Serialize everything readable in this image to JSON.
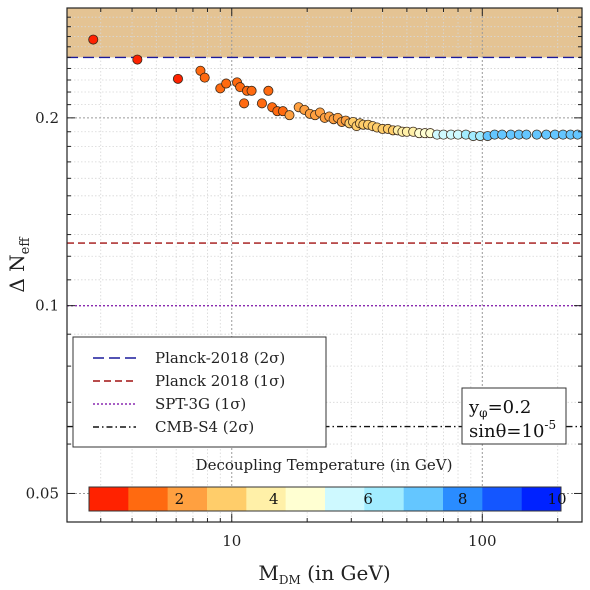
{
  "chart_data": {
    "type": "scatter",
    "xlabel": "M",
    "xlabel_sub": "DM",
    "xlabel_rest": " (in GeV)",
    "ylabel": "Δ N",
    "ylabel_sub": "eff",
    "xscale": "log",
    "yscale": "log",
    "xlim": [
      2.2,
      250
    ],
    "ylim": [
      0.045,
      0.3
    ],
    "x_ticks": [
      {
        "value": 10,
        "label": "10"
      },
      {
        "value": 100,
        "label": "100"
      }
    ],
    "y_ticks": [
      {
        "value": 0.05,
        "label": "0.05"
      },
      {
        "value": 0.1,
        "label": "0.1"
      },
      {
        "value": 0.2,
        "label": "0.2"
      }
    ],
    "grid": true,
    "excluded_band": {
      "from": 0.25,
      "to": 0.3,
      "color": "#e4c393"
    },
    "reference_lines": [
      {
        "name": "Planck-2018 (2σ)",
        "y": 0.25,
        "color": "#1a1a9c",
        "dash": "long"
      },
      {
        "name": "Planck 2018 (1σ)",
        "y": 0.126,
        "color": "#a01010",
        "dash": "medium"
      },
      {
        "name": "SPT-3G (1σ)",
        "y": 0.1,
        "color": "#8a2ab0",
        "dash": "dot"
      },
      {
        "name": "CMB-S4 (2σ)",
        "y": 0.064,
        "color": "#111111",
        "dash": "dashdot"
      }
    ],
    "legend_placement": "lower-left",
    "annotation": {
      "line1_prefix": "y",
      "line1_sub": "φ",
      "line1_value": "=0.2",
      "line2_prefix": "sinθ=10",
      "line2_sup": "-5"
    },
    "colorbar": {
      "title": "Decoupling Temperature (in GeV)",
      "range": [
        0,
        10
      ],
      "ticks": [
        "2",
        "4",
        "6",
        "8",
        "10"
      ],
      "bins": [
        "#ff2200",
        "#ff6a10",
        "#ffa040",
        "#ffcd6a",
        "#fff0a8",
        "#ffffd2",
        "#cef9ff",
        "#a2ecff",
        "#64c6ff",
        "#2a8cff",
        "#1456ff",
        "#0022ff"
      ]
    },
    "points": [
      {
        "x": 2.8,
        "y": 0.267,
        "t": 0.3
      },
      {
        "x": 4.2,
        "y": 0.248,
        "t": 0.6
      },
      {
        "x": 6.1,
        "y": 0.231,
        "t": 0.8
      },
      {
        "x": 7.5,
        "y": 0.238,
        "t": 1.0
      },
      {
        "x": 7.8,
        "y": 0.232,
        "t": 1.0
      },
      {
        "x": 9.0,
        "y": 0.223,
        "t": 1.1
      },
      {
        "x": 9.5,
        "y": 0.227,
        "t": 1.1
      },
      {
        "x": 10.5,
        "y": 0.228,
        "t": 1.2
      },
      {
        "x": 10.8,
        "y": 0.224,
        "t": 1.2
      },
      {
        "x": 11.5,
        "y": 0.221,
        "t": 1.3
      },
      {
        "x": 12.0,
        "y": 0.221,
        "t": 1.3
      },
      {
        "x": 11.2,
        "y": 0.211,
        "t": 1.3
      },
      {
        "x": 14.0,
        "y": 0.221,
        "t": 1.4
      },
      {
        "x": 13.2,
        "y": 0.211,
        "t": 1.4
      },
      {
        "x": 14.5,
        "y": 0.208,
        "t": 1.5
      },
      {
        "x": 15.2,
        "y": 0.205,
        "t": 1.5
      },
      {
        "x": 16.0,
        "y": 0.205,
        "t": 1.6
      },
      {
        "x": 17.0,
        "y": 0.202,
        "t": 1.7
      },
      {
        "x": 18.5,
        "y": 0.208,
        "t": 1.7
      },
      {
        "x": 19.5,
        "y": 0.206,
        "t": 1.8
      },
      {
        "x": 20.5,
        "y": 0.203,
        "t": 1.8
      },
      {
        "x": 21.5,
        "y": 0.202,
        "t": 1.9
      },
      {
        "x": 22.5,
        "y": 0.204,
        "t": 2.0
      },
      {
        "x": 23.5,
        "y": 0.2,
        "t": 2.0
      },
      {
        "x": 24.5,
        "y": 0.201,
        "t": 2.1
      },
      {
        "x": 25.5,
        "y": 0.199,
        "t": 2.2
      },
      {
        "x": 26.5,
        "y": 0.2,
        "t": 2.2
      },
      {
        "x": 27.5,
        "y": 0.197,
        "t": 2.3
      },
      {
        "x": 28.5,
        "y": 0.198,
        "t": 2.4
      },
      {
        "x": 29.5,
        "y": 0.196,
        "t": 2.5
      },
      {
        "x": 30.5,
        "y": 0.197,
        "t": 2.5
      },
      {
        "x": 31.5,
        "y": 0.194,
        "t": 2.6
      },
      {
        "x": 32.5,
        "y": 0.196,
        "t": 2.7
      },
      {
        "x": 33.5,
        "y": 0.195,
        "t": 2.7
      },
      {
        "x": 35.0,
        "y": 0.195,
        "t": 2.8
      },
      {
        "x": 36.5,
        "y": 0.194,
        "t": 2.9
      },
      {
        "x": 38.0,
        "y": 0.193,
        "t": 3.0
      },
      {
        "x": 40.0,
        "y": 0.192,
        "t": 3.1
      },
      {
        "x": 42.0,
        "y": 0.192,
        "t": 3.2
      },
      {
        "x": 44.0,
        "y": 0.191,
        "t": 3.3
      },
      {
        "x": 46.0,
        "y": 0.191,
        "t": 3.5
      },
      {
        "x": 48.0,
        "y": 0.19,
        "t": 3.6
      },
      {
        "x": 50.0,
        "y": 0.19,
        "t": 3.8
      },
      {
        "x": 53.0,
        "y": 0.19,
        "t": 4.0
      },
      {
        "x": 56.0,
        "y": 0.189,
        "t": 4.3
      },
      {
        "x": 59.0,
        "y": 0.189,
        "t": 4.6
      },
      {
        "x": 62.0,
        "y": 0.189,
        "t": 4.8
      },
      {
        "x": 66.0,
        "y": 0.188,
        "t": 5.0
      },
      {
        "x": 70.0,
        "y": 0.188,
        "t": 5.2
      },
      {
        "x": 75.0,
        "y": 0.188,
        "t": 5.5
      },
      {
        "x": 80.0,
        "y": 0.188,
        "t": 5.8
      },
      {
        "x": 86.0,
        "y": 0.188,
        "t": 6.0
      },
      {
        "x": 92.0,
        "y": 0.187,
        "t": 6.3
      },
      {
        "x": 98.0,
        "y": 0.187,
        "t": 6.5
      },
      {
        "x": 105.0,
        "y": 0.187,
        "t": 6.7
      },
      {
        "x": 112.0,
        "y": 0.188,
        "t": 6.9
      },
      {
        "x": 120.0,
        "y": 0.188,
        "t": 7.0
      },
      {
        "x": 130.0,
        "y": 0.188,
        "t": 7.1
      },
      {
        "x": 140.0,
        "y": 0.188,
        "t": 7.2
      },
      {
        "x": 150.0,
        "y": 0.188,
        "t": 7.2
      },
      {
        "x": 165.0,
        "y": 0.188,
        "t": 7.3
      },
      {
        "x": 180.0,
        "y": 0.188,
        "t": 7.3
      },
      {
        "x": 195.0,
        "y": 0.188,
        "t": 7.3
      },
      {
        "x": 210.0,
        "y": 0.188,
        "t": 7.4
      },
      {
        "x": 225.0,
        "y": 0.188,
        "t": 7.4
      },
      {
        "x": 240.0,
        "y": 0.188,
        "t": 7.4
      }
    ]
  }
}
